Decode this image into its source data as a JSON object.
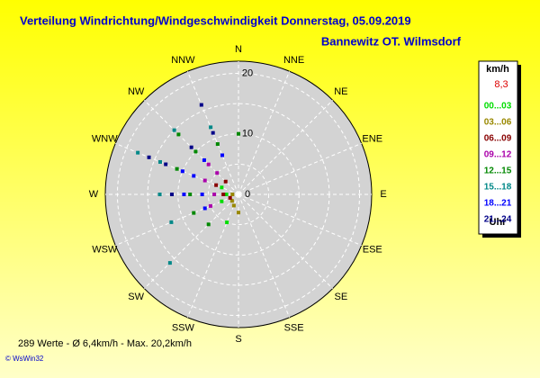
{
  "chart_data": {
    "type": "polar-scatter",
    "title": "Verteilung Windrichtung/Windgeschwindigkeit  Donnerstag, 05.09.2019",
    "subtitle": "Bannewitz OT. Wilmsdorf",
    "categories": [
      "N",
      "NNE",
      "NE",
      "ENE",
      "E",
      "ESE",
      "SE",
      "SSE",
      "S",
      "SSW",
      "SW",
      "WSW",
      "W",
      "WNW",
      "NW",
      "NNW"
    ],
    "rlim": [
      0,
      22
    ],
    "rticks": [
      0,
      10,
      20
    ],
    "grid_rings": [
      5,
      10,
      15,
      20
    ],
    "legend_title": "km/h",
    "legend_value": "8,3",
    "legend_footer": "Uhr",
    "series": [
      {
        "name": "00...03",
        "color": "#00dd00",
        "directions": [
          270,
          247.5,
          202.5,
          292.5
        ],
        "values": [
          2,
          3,
          5,
          3
        ]
      },
      {
        "name": "03...06",
        "color": "#998800",
        "directions": [
          180,
          202.5,
          225,
          270
        ],
        "values": [
          3,
          2,
          1.5,
          1
        ]
      },
      {
        "name": "06...09",
        "color": "#880000",
        "directions": [
          270,
          292.5,
          315,
          247.5
        ],
        "values": [
          2.5,
          4,
          3,
          1.5
        ]
      },
      {
        "name": "09...12",
        "color": "#aa00aa",
        "directions": [
          292.5,
          315,
          247.5,
          270,
          315
        ],
        "values": [
          6,
          5,
          5,
          4,
          7
        ]
      },
      {
        "name": "12...15",
        "color": "#008800",
        "directions": [
          0,
          315,
          292.5,
          270,
          247.5,
          315,
          337.5,
          225
        ],
        "values": [
          10,
          14,
          11,
          8,
          8,
          10,
          9,
          7
        ]
      },
      {
        "name": "15...18",
        "color": "#008888",
        "directions": [
          292.5,
          315,
          270,
          247.5,
          225,
          337.5,
          292.5
        ],
        "values": [
          18,
          15,
          13,
          12,
          16,
          12,
          14
        ]
      },
      {
        "name": "18...21",
        "color": "#0000ff",
        "directions": [
          270,
          292.5,
          315,
          337.5,
          247.5,
          270,
          292.5
        ],
        "values": [
          9,
          8,
          8,
          7,
          6,
          6,
          10
        ]
      },
      {
        "name": "21...24",
        "color": "#000088",
        "directions": [
          337.5,
          315,
          292.5,
          270,
          292.5,
          337.5
        ],
        "values": [
          16,
          11,
          13,
          11,
          16,
          11
        ]
      }
    ],
    "footer": "289 Werte  -  Ø 6,4km/h  -  Max. 20,2km/h",
    "credit": "© WsWin32"
  }
}
